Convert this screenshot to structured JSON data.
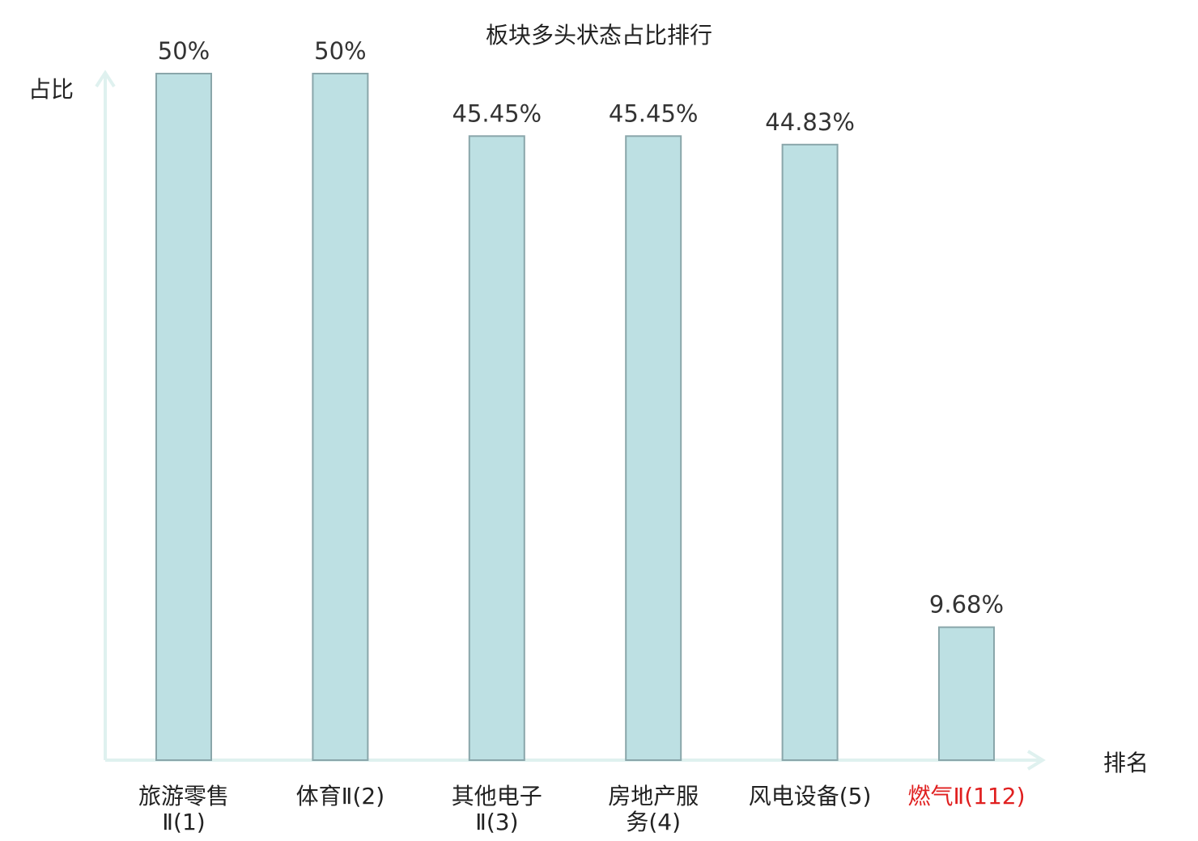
{
  "chart_data": {
    "type": "bar",
    "title": "板块多头状态占比排行",
    "ylabel": "占比",
    "xlabel": "排名",
    "categories": [
      [
        "旅游零售",
        "Ⅱ(1)"
      ],
      [
        "体育Ⅱ(2)"
      ],
      [
        "其他电子",
        "Ⅱ(3)"
      ],
      [
        "房地产服",
        "务(4)"
      ],
      [
        "风电设备(5)"
      ],
      [
        "燃气Ⅱ(112)"
      ]
    ],
    "highlighted": [
      false,
      false,
      false,
      false,
      false,
      true
    ],
    "values": [
      50,
      50,
      45.45,
      45.45,
      44.83,
      9.68
    ],
    "value_labels": [
      "50%",
      "50%",
      "45.45%",
      "45.45%",
      "44.83%",
      "9.68%"
    ],
    "ylim": [
      0,
      50
    ],
    "grid": false,
    "legend": "none",
    "colors": {
      "bar_fill": "#bde0e3",
      "bar_stroke": "#8aa6aa",
      "axis": "#dff1ef",
      "highlight_text": "#e02020"
    }
  }
}
